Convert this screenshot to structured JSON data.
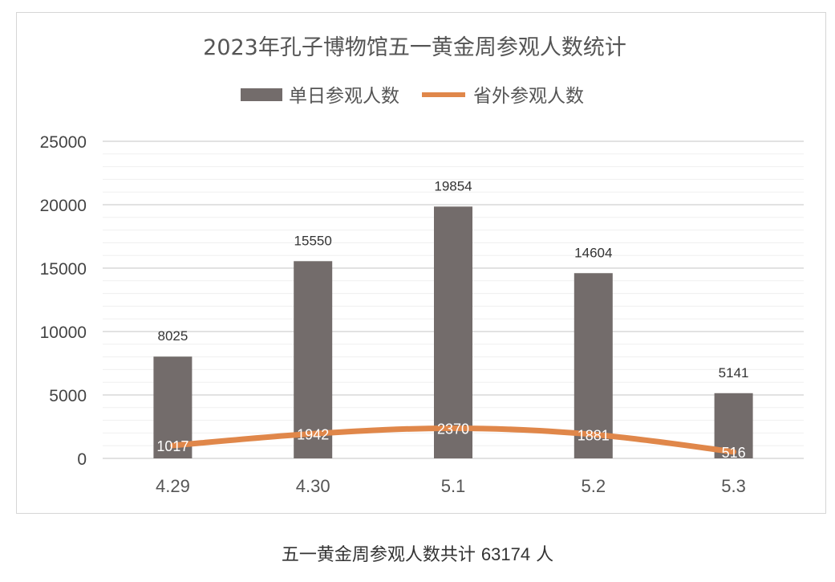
{
  "chart_data": {
    "type": "bar",
    "title": "2023年孔子博物馆五一黄金周参观人数统计",
    "categories": [
      "4.29",
      "4.30",
      "5.1",
      "5.2",
      "5.3"
    ],
    "series": [
      {
        "name": "单日参观人数",
        "type": "bar",
        "color": "#736c6b",
        "values": [
          8025,
          15550,
          19854,
          14604,
          5141
        ]
      },
      {
        "name": "省外参观人数",
        "type": "line",
        "color": "#e0874a",
        "values": [
          1017,
          1942,
          2370,
          1881,
          516
        ]
      }
    ],
    "yticks": [
      "0",
      "5000",
      "10000",
      "15000",
      "20000",
      "25000"
    ],
    "ylim": [
      0,
      25000
    ],
    "grid": true,
    "legend": "top"
  },
  "caption": {
    "prefix": "五一黄金周参观人数共计",
    "total": "63174",
    "suffix": "人"
  }
}
